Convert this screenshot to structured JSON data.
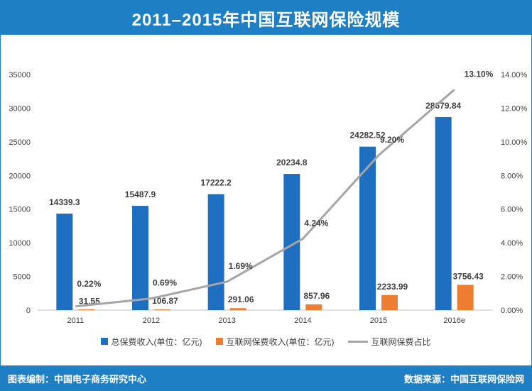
{
  "header": {
    "title": "2011–2015年中国互联网保险规模"
  },
  "footer": {
    "left": "图表编制：中国电子商务研究中心",
    "right": "数据来源：中国互联网保险网"
  },
  "colors": {
    "header_bg": "#1f7fc4",
    "total_bar": "#1f6fc1",
    "internet_bar": "#ed7d31",
    "ratio_line": "#a5a5a5"
  },
  "chart_data": {
    "type": "bar",
    "title": "2011–2015年中国互联网保险规模",
    "categories": [
      "2011",
      "2012",
      "2013",
      "2014",
      "2015",
      "2016e"
    ],
    "series": [
      {
        "name": "总保费收入(单位：亿元)",
        "axis": "left",
        "values": [
          14339.3,
          15487.9,
          17222.2,
          20234.8,
          24282.52,
          28679.84
        ],
        "labels": [
          "14339.3",
          "15487.9",
          "17222.2",
          "20234.8",
          "24282.52",
          "28679.84"
        ]
      },
      {
        "name": "互联网保费收入(单位：亿元)",
        "axis": "left",
        "values": [
          31.55,
          106.87,
          291.06,
          857.96,
          2233.99,
          3756.43
        ],
        "labels": [
          "31.55",
          "106.87",
          "291.06",
          "857.96",
          "2233.99",
          "3756.43"
        ]
      },
      {
        "name": "互联网保费占比",
        "axis": "right",
        "type": "line",
        "values": [
          0.22,
          0.69,
          1.69,
          4.24,
          9.2,
          13.1
        ],
        "labels": [
          "0.22%",
          "0.69%",
          "1.69%",
          "4.24%",
          "9.20%",
          "13.10%"
        ]
      }
    ],
    "left_axis": {
      "ylim": [
        0,
        35000
      ],
      "ticks": [
        "0",
        "5000",
        "10000",
        "15000",
        "20000",
        "25000",
        "30000",
        "35000"
      ]
    },
    "right_axis": {
      "ylim": [
        0,
        14
      ],
      "ticks": [
        "0.00%",
        "2.00%",
        "4.00%",
        "6.00%",
        "8.00%",
        "10.00%",
        "12.00%",
        "14.00%"
      ]
    },
    "grid": false,
    "legend": "bottom"
  }
}
